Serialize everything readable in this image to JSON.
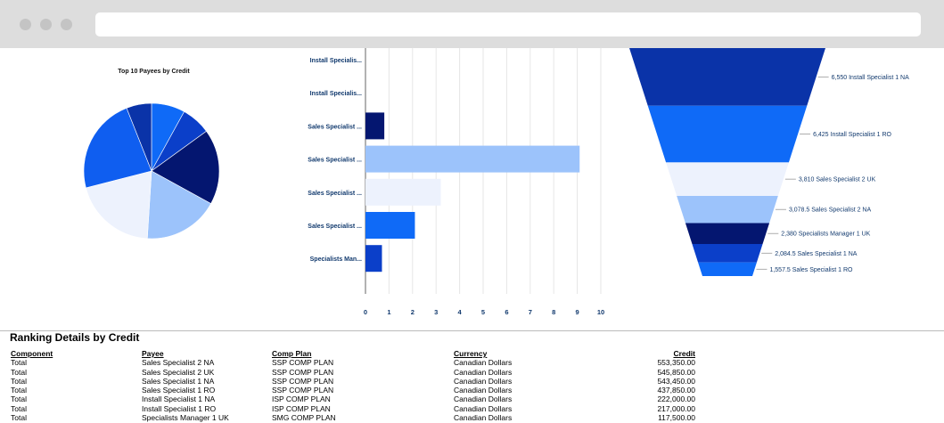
{
  "colors": {
    "c1": "#0a33a8",
    "c2": "#0f5ef0",
    "c3": "#edf2fd",
    "c4": "#9cc3fb",
    "c5": "#041670",
    "c6": "#0b3fc9",
    "c7": "#0f6af7",
    "c8": "#2255dd"
  },
  "pie": {
    "title": "Top 10 Payees by Credit"
  },
  "chart_data": [
    {
      "type": "pie",
      "title": "Top 10 Payees by Credit",
      "slices": [
        {
          "color": "#0f6af7",
          "fraction": 0.08
        },
        {
          "color": "#0b3fc9",
          "fraction": 0.07
        },
        {
          "color": "#041670",
          "fraction": 0.18
        },
        {
          "color": "#9cc3fb",
          "fraction": 0.18
        },
        {
          "color": "#edf2fd",
          "fraction": 0.2
        },
        {
          "color": "#0f5ef0",
          "fraction": 0.23
        },
        {
          "color": "#0a33a8",
          "fraction": 0.06
        }
      ]
    },
    {
      "type": "bar",
      "orientation": "horizontal",
      "categories": [
        "Install Specialis...",
        "Install Specialis...",
        "Sales Specialist ...",
        "Sales Specialist ...",
        "Sales Specialist ...",
        "Sales Specialist ...",
        "Specialists Man..."
      ],
      "values": [
        0,
        0,
        0.8,
        9.1,
        3.2,
        2.1,
        0.7
      ],
      "colors": [
        "#0a33a8",
        "#0a33a8",
        "#041670",
        "#9cc3fb",
        "#edf2fd",
        "#0f6af7",
        "#0b3fc9"
      ],
      "xticks": [
        "0",
        "1",
        "2",
        "3",
        "4",
        "5",
        "6",
        "7",
        "8",
        "9",
        "10"
      ],
      "xlim": [
        0,
        10
      ],
      "grid": true
    },
    {
      "type": "funnel",
      "labels": [
        "6,550 Install Specialist 1 NA",
        "6,425 Install Specialist 1 RO",
        "3,810 Sales Specialist 2 UK",
        "3,078.5 Sales Specialist 2 NA",
        "2,380 Specialists Manager 1 UK",
        "2,084.5 Sales Specialist 1 NA",
        "1,557.5 Sales Specialist 1 RO"
      ],
      "values": [
        6550,
        6425,
        3810,
        3078.5,
        2380,
        2084.5,
        1557.5
      ],
      "colors": [
        "#0a33a8",
        "#0f6af7",
        "#edf2fd",
        "#9cc3fb",
        "#041670",
        "#0b3fc9",
        "#0f6af7"
      ]
    }
  ],
  "table": {
    "title": "Ranking Details by Credit",
    "headers": {
      "component": "Component",
      "payee": "Payee",
      "plan": "Comp Plan",
      "currency": "Currency",
      "credit": "Credit"
    },
    "rows": [
      {
        "component": "Total",
        "payee": "Sales Specialist 2 NA",
        "plan": "SSP COMP PLAN",
        "currency": "Canadian Dollars",
        "credit": "553,350.00"
      },
      {
        "component": "Total",
        "payee": "Sales Specialist 2 UK",
        "plan": "SSP COMP PLAN",
        "currency": "Canadian Dollars",
        "credit": "545,850.00"
      },
      {
        "component": "Total",
        "payee": "Sales Specialist 1 NA",
        "plan": "SSP COMP PLAN",
        "currency": "Canadian Dollars",
        "credit": "543,450.00"
      },
      {
        "component": "Total",
        "payee": "Sales Specialist 1 RO",
        "plan": "SSP COMP PLAN",
        "currency": "Canadian Dollars",
        "credit": "437,850.00"
      },
      {
        "component": "Total",
        "payee": "Install Specialist 1 NA",
        "plan": "ISP COMP PLAN",
        "currency": "Canadian Dollars",
        "credit": "222,000.00"
      },
      {
        "component": "Total",
        "payee": "Install Specialist 1 RO",
        "plan": "ISP COMP PLAN",
        "currency": "Canadian Dollars",
        "credit": "217,000.00"
      },
      {
        "component": "Total",
        "payee": "Specialists Manager 1 UK",
        "plan": "SMG COMP PLAN",
        "currency": "Canadian Dollars",
        "credit": "117,500.00"
      }
    ]
  }
}
